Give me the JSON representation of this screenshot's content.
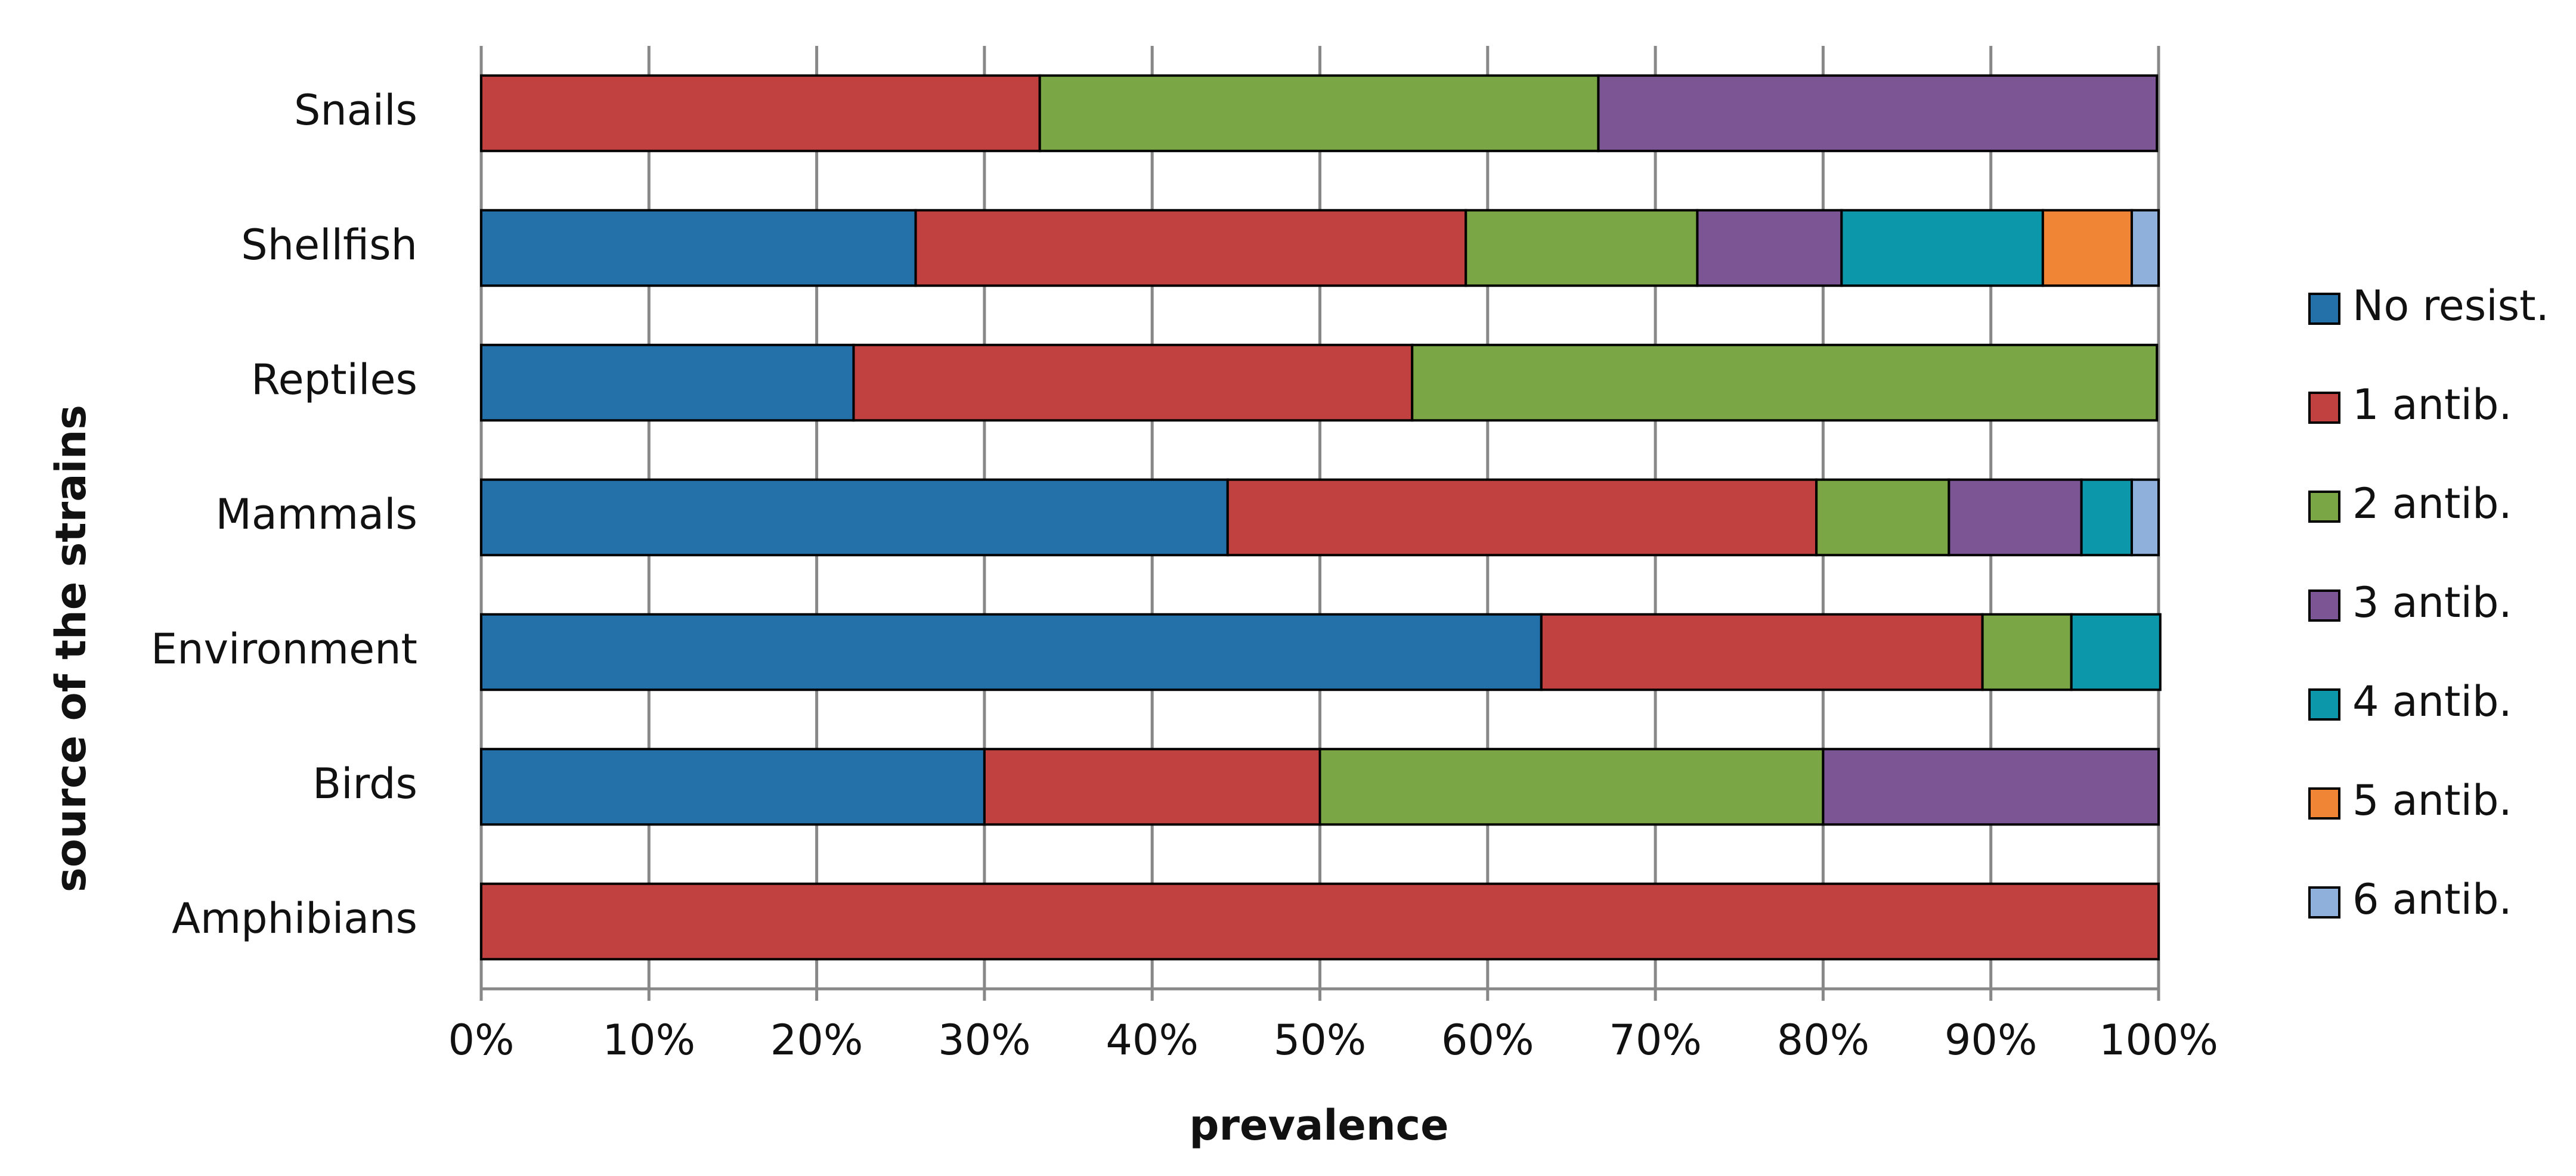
{
  "chart_data": {
    "type": "stacked_bar_horizontal",
    "x_label": "prevalence",
    "y_label": "source of the strains",
    "categories": [
      "Snails",
      "Shellfish",
      "Reptiles",
      "Mammals",
      "Environment",
      "Birds",
      "Amphibians"
    ],
    "series": [
      {
        "name": "No resist.",
        "color": "#2471aa",
        "values": [
          0,
          25.9,
          22.2,
          44.5,
          63.2,
          30,
          0
        ]
      },
      {
        "name": "1 antib.",
        "color": "#c0413f",
        "values": [
          33.3,
          32.8,
          33.3,
          35.1,
          26.3,
          20,
          100
        ]
      },
      {
        "name": "2 antib.",
        "color": "#7ba646",
        "values": [
          33.3,
          13.8,
          44.4,
          7.9,
          5.3,
          30,
          0
        ]
      },
      {
        "name": "3 antib.",
        "color": "#7b5594",
        "values": [
          33.3,
          8.6,
          0,
          7.9,
          0,
          20,
          0
        ]
      },
      {
        "name": "4 antib.",
        "color": "#0d97ab",
        "values": [
          0,
          12.0,
          0,
          3.0,
          5.3,
          0,
          0
        ]
      },
      {
        "name": "5 antib.",
        "color": "#ef8535",
        "values": [
          0,
          5.3,
          0,
          0,
          0,
          0,
          0
        ]
      },
      {
        "name": "6 antib.",
        "color": "#8fb0db",
        "values": [
          0,
          1.6,
          0,
          1.6,
          0,
          0,
          0
        ]
      }
    ],
    "xlim": [
      0,
      100
    ],
    "xticks": [
      {
        "value": 0,
        "label": "0%"
      },
      {
        "value": 10,
        "label": "10%"
      },
      {
        "value": 20,
        "label": "20%"
      },
      {
        "value": 30,
        "label": "30%"
      },
      {
        "value": 40,
        "label": "40%"
      },
      {
        "value": 50,
        "label": "50%"
      },
      {
        "value": 60,
        "label": "60%"
      },
      {
        "value": 70,
        "label": "70%"
      },
      {
        "value": 80,
        "label": "80%"
      },
      {
        "value": 90,
        "label": "90%"
      },
      {
        "value": 100,
        "label": "100%"
      }
    ],
    "grid": true,
    "legend": "right"
  }
}
